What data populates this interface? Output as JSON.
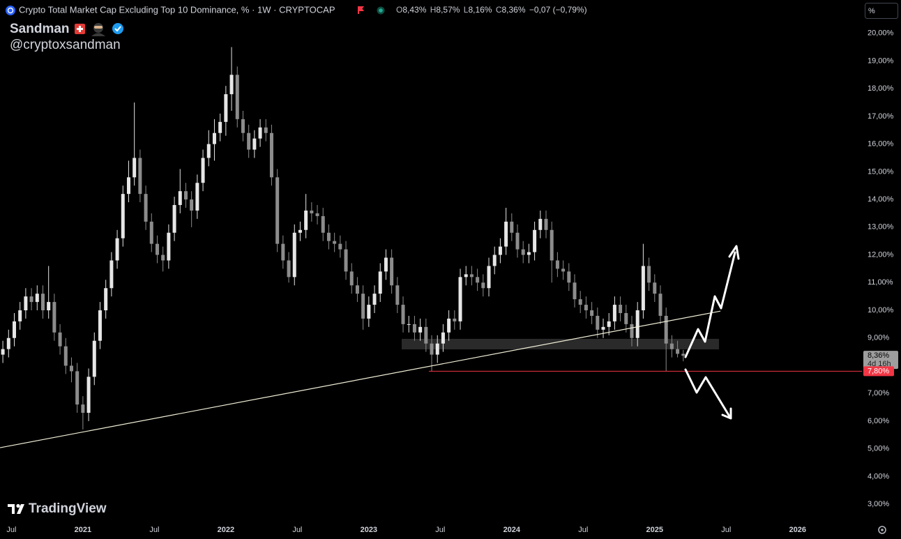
{
  "chart_data": {
    "type": "candlestick",
    "title": "Crypto Total Market Cap Excluding Top 10 Dominance, % · 1W · CRYPTOCAP",
    "legend_values": [
      {
        "key": "O",
        "text": "8,43%"
      },
      {
        "key": "H",
        "text": "8,57%"
      },
      {
        "key": "L",
        "text": "8,16%"
      },
      {
        "key": "C",
        "text": "8,36%"
      }
    ],
    "change": "−0,07 (−0,79%)",
    "author": "Sandman",
    "handle": "@cryptoxsandman",
    "watermark": "TradingView",
    "scale_button": "%",
    "up_color": "#e6e6e6",
    "down_color": "#8c8c8c",
    "grid": false,
    "x": [
      2020.44,
      2020.48,
      2020.52,
      2020.56,
      2020.6,
      2020.64,
      2020.68,
      2020.72,
      2020.76,
      2020.8,
      2020.84,
      2020.88,
      2020.92,
      2020.96,
      2021,
      2021.04,
      2021.08,
      2021.12,
      2021.16,
      2021.2,
      2021.24,
      2021.28,
      2021.32,
      2021.36,
      2021.4,
      2021.44,
      2021.48,
      2021.52,
      2021.56,
      2021.6,
      2021.64,
      2021.68,
      2021.72,
      2021.76,
      2021.8,
      2021.84,
      2021.88,
      2021.92,
      2021.96,
      2022,
      2022.04,
      2022.08,
      2022.12,
      2022.16,
      2022.2,
      2022.24,
      2022.28,
      2022.32,
      2022.36,
      2022.4,
      2022.44,
      2022.48,
      2022.52,
      2022.56,
      2022.6,
      2022.64,
      2022.68,
      2022.72,
      2022.76,
      2022.8,
      2022.84,
      2022.88,
      2022.92,
      2022.96,
      2023,
      2023.04,
      2023.08,
      2023.12,
      2023.16,
      2023.2,
      2023.24,
      2023.28,
      2023.32,
      2023.36,
      2023.4,
      2023.44,
      2023.48,
      2023.52,
      2023.56,
      2023.6,
      2023.64,
      2023.68,
      2023.72,
      2023.76,
      2023.8,
      2023.84,
      2023.88,
      2023.92,
      2023.96,
      2024,
      2024.04,
      2024.08,
      2024.12,
      2024.16,
      2024.2,
      2024.24,
      2024.28,
      2024.32,
      2024.36,
      2024.4,
      2024.44,
      2024.48,
      2024.52,
      2024.56,
      2024.6,
      2024.64,
      2024.68,
      2024.72,
      2024.76,
      2024.8,
      2024.84,
      2024.88,
      2024.92,
      2024.96,
      2025,
      2025.04,
      2025.08,
      2025.12,
      2025.16,
      2025.2
    ],
    "open": [
      8.4,
      8.6,
      9.0,
      9.6,
      10.0,
      10.5,
      10.3,
      10.6,
      10.0,
      10.3,
      9.2,
      8.7,
      8.0,
      7.8,
      6.6,
      6.3,
      7.6,
      8.9,
      10.0,
      10.8,
      11.8,
      12.6,
      14.2,
      14.8,
      15.5,
      14.2,
      13.2,
      12.4,
      12.0,
      11.8,
      12.8,
      13.8,
      14.3,
      14.0,
      13.6,
      14.6,
      15.5,
      16.0,
      16.4,
      16.8,
      17.8,
      18.5,
      16.9,
      16.4,
      15.8,
      16.2,
      16.6,
      16.4,
      14.8,
      12.4,
      11.8,
      11.2,
      12.8,
      12.9,
      13.6,
      13.5,
      13.4,
      12.8,
      12.5,
      12.4,
      12.2,
      11.4,
      10.9,
      10.6,
      9.7,
      10.2,
      10.6,
      11.4,
      11.9,
      10.9,
      10.2,
      9.5,
      9.5,
      9.2,
      9.4,
      8.8,
      8.4,
      8.8,
      9.2,
      9.7,
      9.6,
      11.2,
      11.3,
      11.2,
      11.0,
      10.8,
      11.6,
      12.0,
      12.3,
      13.2,
      12.8,
      12.2,
      12.0,
      12.1,
      12.9,
      13.3,
      12.9,
      11.8,
      11.5,
      11.4,
      11.0,
      10.4,
      10.2,
      10.0,
      9.8,
      9.3,
      9.4,
      9.6,
      10.2,
      9.9,
      9.5,
      9.0,
      10.0,
      11.6,
      11.0,
      10.6,
      9.8,
      8.8,
      8.6,
      8.43
    ],
    "high": [
      8.9,
      9.3,
      9.9,
      10.3,
      10.8,
      10.8,
      10.9,
      10.9,
      11.6,
      10.6,
      9.5,
      9.0,
      8.3,
      8.1,
      6.9,
      7.9,
      9.2,
      10.3,
      11.1,
      12.1,
      12.9,
      14.5,
      15.4,
      17.5,
      15.8,
      14.5,
      13.5,
      12.7,
      12.3,
      13.1,
      14.1,
      15.1,
      14.6,
      14.3,
      14.9,
      15.8,
      16.5,
      16.9,
      17.1,
      18.1,
      19.5,
      18.8,
      17.2,
      16.7,
      16.5,
      16.9,
      16.9,
      16.7,
      15.1,
      12.7,
      12.1,
      13.1,
      13.2,
      14.2,
      13.9,
      13.8,
      13.7,
      13.1,
      12.8,
      12.7,
      12.5,
      11.7,
      11.2,
      10.9,
      10.5,
      10.9,
      11.7,
      12.2,
      12.2,
      11.2,
      10.5,
      9.8,
      9.8,
      9.7,
      9.7,
      9.1,
      9.1,
      9.5,
      10.0,
      10.0,
      11.5,
      11.6,
      11.6,
      11.5,
      11.3,
      11.9,
      12.3,
      12.6,
      13.7,
      13.5,
      13.1,
      12.5,
      12.4,
      13.2,
      13.6,
      13.6,
      13.2,
      12.1,
      11.8,
      11.7,
      11.3,
      10.7,
      10.5,
      10.3,
      10.1,
      9.7,
      9.9,
      10.5,
      10.5,
      10.2,
      9.8,
      10.3,
      12.4,
      11.9,
      11.3,
      10.9,
      10.1,
      9.1,
      8.9,
      8.57
    ],
    "low": [
      8.1,
      8.3,
      8.7,
      9.3,
      9.7,
      10.0,
      10.0,
      9.7,
      9.7,
      8.9,
      8.4,
      7.7,
      7.4,
      6.3,
      5.7,
      6.0,
      7.3,
      8.6,
      9.7,
      10.5,
      11.5,
      12.3,
      13.9,
      14.5,
      13.9,
      12.9,
      12.1,
      11.7,
      11.4,
      11.5,
      12.5,
      13.5,
      13.7,
      13.0,
      13.3,
      14.3,
      15.2,
      15.4,
      16.1,
      16.3,
      17.2,
      16.6,
      16.1,
      15.5,
      15.5,
      15.9,
      16.1,
      14.5,
      12.1,
      11.5,
      11.0,
      10.9,
      12.5,
      12.6,
      13.2,
      13.1,
      12.5,
      12.2,
      12.1,
      11.9,
      11.1,
      10.6,
      10.3,
      9.3,
      9.4,
      9.9,
      10.3,
      11.1,
      10.6,
      9.9,
      9.2,
      9.2,
      8.9,
      8.9,
      8.5,
      7.8,
      8.1,
      8.5,
      8.9,
      9.3,
      9.3,
      10.9,
      10.9,
      10.7,
      10.5,
      10.5,
      11.3,
      11.7,
      12.0,
      12.5,
      11.9,
      11.7,
      11.7,
      11.8,
      12.6,
      12.6,
      11.0,
      11.2,
      11.1,
      10.7,
      10.1,
      9.9,
      9.7,
      9.5,
      9.0,
      9.0,
      9.1,
      9.3,
      9.6,
      9.2,
      8.7,
      8.7,
      9.7,
      10.7,
      10.3,
      9.5,
      7.8,
      8.3,
      8.3,
      8.16
    ],
    "close": [
      8.6,
      9.0,
      9.6,
      10.0,
      10.5,
      10.3,
      10.6,
      10.0,
      10.3,
      9.2,
      8.7,
      8.0,
      7.8,
      6.6,
      6.3,
      7.6,
      8.9,
      10.0,
      10.8,
      11.8,
      12.6,
      14.2,
      14.8,
      15.5,
      14.2,
      13.2,
      12.4,
      12.0,
      11.8,
      12.8,
      13.8,
      14.3,
      14.0,
      13.6,
      14.6,
      15.5,
      16.0,
      16.4,
      16.8,
      17.8,
      18.5,
      16.9,
      16.4,
      15.8,
      16.2,
      16.6,
      16.4,
      14.8,
      12.4,
      11.8,
      11.2,
      12.8,
      12.9,
      13.6,
      13.5,
      13.4,
      12.8,
      12.5,
      12.4,
      12.2,
      11.4,
      10.9,
      10.6,
      9.7,
      10.2,
      10.6,
      11.4,
      11.9,
      10.9,
      10.2,
      9.5,
      9.5,
      9.2,
      9.4,
      8.8,
      8.4,
      8.8,
      9.2,
      9.7,
      9.6,
      11.2,
      11.3,
      11.2,
      11.0,
      10.8,
      11.6,
      12.0,
      12.3,
      13.2,
      12.8,
      12.2,
      12.0,
      12.1,
      12.9,
      13.3,
      12.9,
      11.8,
      11.5,
      11.4,
      11.0,
      10.4,
      10.2,
      10.0,
      9.8,
      9.3,
      9.4,
      9.6,
      10.2,
      9.9,
      9.5,
      9.0,
      10.0,
      11.6,
      11.0,
      10.6,
      9.8,
      8.8,
      8.6,
      8.43,
      8.36
    ],
    "xlim": [
      2020.42,
      2026.45
    ],
    "xticks": [
      {
        "value": 2020.5,
        "label": "Jul"
      },
      2021,
      {
        "value": 2021.5,
        "label": "Jul"
      },
      2022,
      {
        "value": 2022.5,
        "label": "Jul"
      },
      2023,
      {
        "value": 2023.5,
        "label": "Jul"
      },
      2024,
      {
        "value": 2024.5,
        "label": "Jul"
      },
      2025,
      {
        "value": 2025.5,
        "label": "Jul"
      },
      2026
    ],
    "ylim": [
      2.45,
      21.2
    ],
    "yticks": [
      {
        "value": 3,
        "label": "3,00%"
      },
      {
        "value": 4,
        "label": "4,00%"
      },
      {
        "value": 5,
        "label": "5,00%"
      },
      {
        "value": 6,
        "label": "6,00%"
      },
      {
        "value": 7,
        "label": "7,00%"
      },
      {
        "value": 8,
        "label": "8,00%"
      },
      {
        "value": 9,
        "label": "9,00%"
      },
      {
        "value": 10,
        "label": "10,00%"
      },
      {
        "value": 11,
        "label": "11,00%"
      },
      {
        "value": 12,
        "label": "12,00%"
      },
      {
        "value": 13,
        "label": "13,00%"
      },
      {
        "value": 14,
        "label": "14,00%"
      },
      {
        "value": 15,
        "label": "15,00%"
      },
      {
        "value": 16,
        "label": "16,00%"
      },
      {
        "value": 17,
        "label": "17,00%"
      },
      {
        "value": 18,
        "label": "18,00%"
      },
      {
        "value": 19,
        "label": "19,00%"
      },
      {
        "value": 20,
        "label": "20,00%"
      }
    ],
    "last_price": {
      "value": 8.36,
      "label": "8,36%",
      "countdown": "4d 16h",
      "color": "#9e9e9e"
    },
    "level": {
      "x_start": 2023.42,
      "value": 7.8,
      "label": "7,80%",
      "color": "#f23645"
    },
    "zone": {
      "x": [
        2023.23,
        2025.45
      ],
      "y": [
        8.59,
        8.97
      ],
      "color": "#2a2a2a"
    },
    "trendline": {
      "x": [
        2020.42,
        2025.46
      ],
      "y": [
        5.04,
        9.97
      ],
      "color": "#f2efd8"
    }
  }
}
